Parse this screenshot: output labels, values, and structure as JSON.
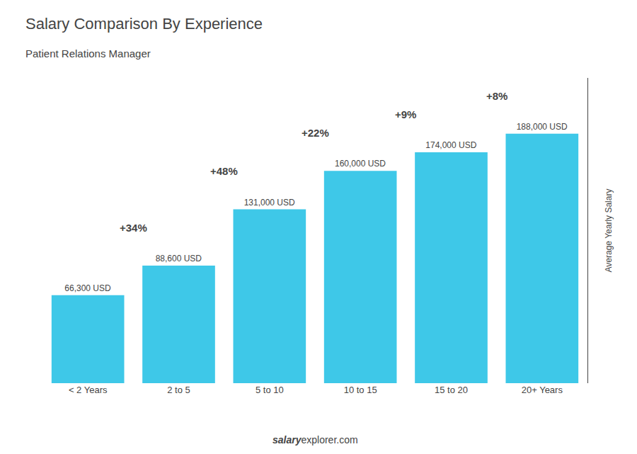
{
  "chart_data": {
    "type": "bar",
    "title": "Salary Comparison By Experience",
    "subtitle": "Patient Relations Manager",
    "ylabel": "Average Yearly Salary",
    "categories": [
      "< 2 Years",
      "2 to 5",
      "5 to 10",
      "10 to 15",
      "15 to 20",
      "20+ Years"
    ],
    "values": [
      66300,
      88600,
      131000,
      160000,
      174000,
      188000
    ],
    "value_labels": [
      "66,300 USD",
      "88,600 USD",
      "131,000 USD",
      "160,000 USD",
      "174,000 USD",
      "188,000 USD"
    ],
    "data_labels": true,
    "color": "#3ec8e8",
    "ylim": [
      0,
      230000
    ],
    "tick_labels": "x",
    "grid": false,
    "annotations": [
      "+34%",
      "+48%",
      "+22%",
      "+9%",
      "+8%"
    ],
    "footer": [
      "salary",
      "explorer.com"
    ]
  }
}
